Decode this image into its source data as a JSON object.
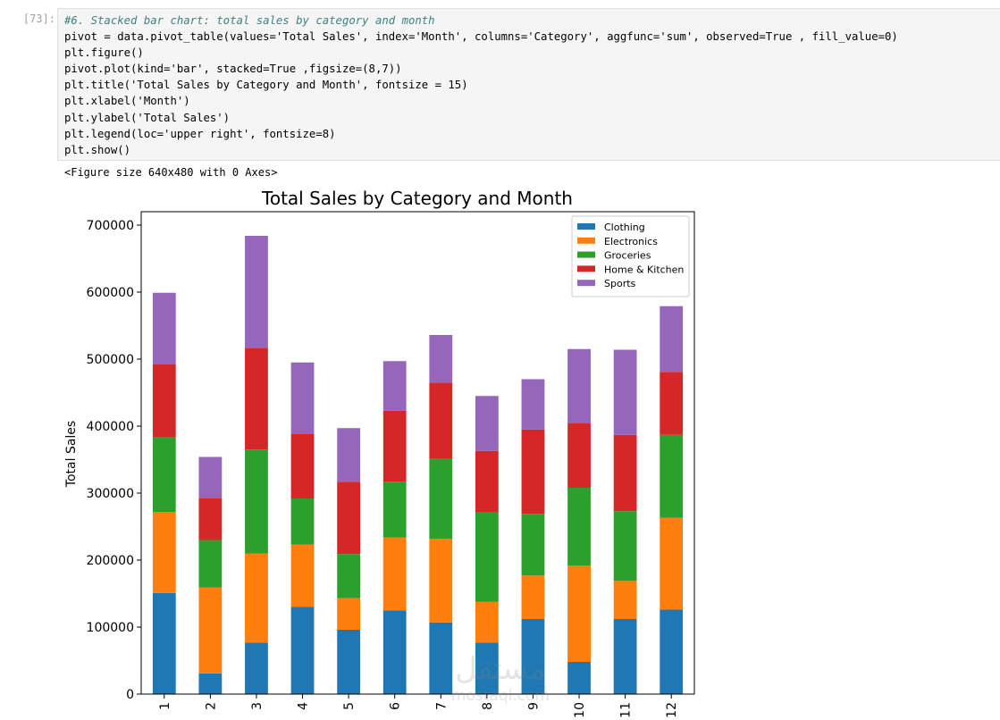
{
  "cell": {
    "prompt": "[73]:",
    "code_lines": [
      "#6. Stacked bar chart: total sales by category and month",
      "pivot = data.pivot_table(values='Total Sales', index='Month', columns='Category', aggfunc='sum', observed=True , fill_value=0)",
      "plt.figure()",
      "pivot.plot(kind='bar', stacked=True ,figsize=(8,7))",
      "plt.title('Total Sales by Category and Month', fontsize = 15)",
      "plt.xlabel('Month')",
      "plt.ylabel('Total Sales')",
      "plt.legend(loc='upper right', fontsize=8)",
      "plt.show()"
    ],
    "output_text": "<Figure size 640x480 with 0 Axes>"
  },
  "watermark": {
    "brand_arabic": "مستقل",
    "brand_latin": "mostaql.com"
  },
  "chart_data": {
    "type": "bar",
    "stacked": true,
    "title": "Total Sales by Category and Month",
    "xlabel": "Month",
    "ylabel": "Total Sales",
    "ylim": [
      0,
      700000
    ],
    "yticks": [
      0,
      100000,
      200000,
      300000,
      400000,
      500000,
      600000,
      700000
    ],
    "legend_position": "upper-right",
    "categories": [
      "1",
      "2",
      "3",
      "4",
      "5",
      "6",
      "7",
      "8",
      "9",
      "10",
      "11",
      "12"
    ],
    "series": [
      {
        "name": "Clothing",
        "color": "#1f77b4",
        "values": [
          151000,
          31000,
          77000,
          130000,
          96000,
          125000,
          107000,
          77000,
          112000,
          48000,
          112000,
          126000
        ]
      },
      {
        "name": "Electronics",
        "color": "#ff7f0e",
        "values": [
          121000,
          128000,
          133000,
          93000,
          47000,
          109000,
          125000,
          61000,
          65000,
          144000,
          57000,
          137000
        ]
      },
      {
        "name": "Groceries",
        "color": "#2ca02c",
        "values": [
          111000,
          71000,
          155000,
          69000,
          66000,
          83000,
          120000,
          134000,
          92000,
          116000,
          104000,
          124000
        ]
      },
      {
        "name": "Home & Kitchen",
        "color": "#d62728",
        "values": [
          109000,
          62000,
          152000,
          96000,
          108000,
          106000,
          113000,
          91000,
          126000,
          96000,
          114000,
          94000
        ]
      },
      {
        "name": "Sports",
        "color": "#9467bd",
        "values": [
          107000,
          62000,
          167000,
          107000,
          80000,
          74000,
          71000,
          82000,
          75000,
          111000,
          127000,
          98000
        ]
      }
    ]
  }
}
